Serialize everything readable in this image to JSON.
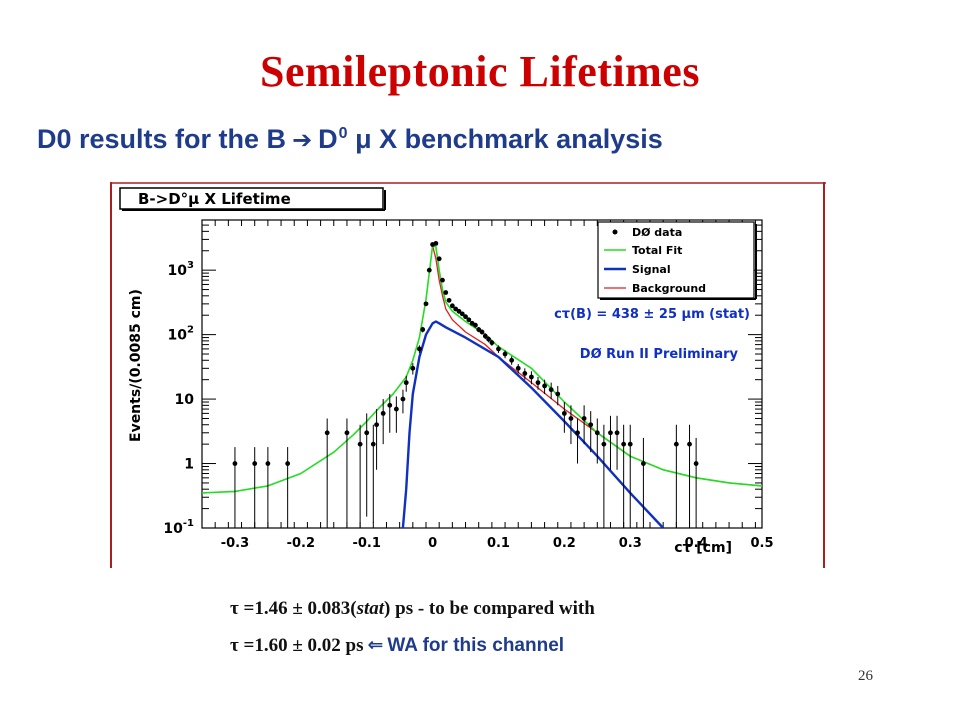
{
  "slide": {
    "title": "Semileptonic Lifetimes",
    "subtitle_pre": "D0 results for the B",
    "subtitle_d": "D",
    "subtitle_d_sup": "0",
    "subtitle_post": "μ X benchmark analysis",
    "result_line1_pre": "τ =1.46 ± 0.083(",
    "result_line1_italic": "stat",
    "result_line1_post": ") ps  - to be compared with",
    "result_line2_pre": "τ =1.60 ± 0.02 ps",
    "result_line2_note": "WA for this channel",
    "page_number": "26"
  },
  "chart_data": {
    "type": "scatter",
    "title": "B->D°μ X Lifetime",
    "xlabel": "cτ [cm]",
    "ylabel": "Events/(0.0085 cm)",
    "xlim": [
      -0.35,
      0.5
    ],
    "ylim": [
      0.1,
      6000
    ],
    "log_y": true,
    "grid": false,
    "legend_position": "top-right",
    "x_ticks": [
      -0.3,
      -0.2,
      -0.1,
      0,
      0.1,
      0.2,
      0.3,
      0.4,
      0.5
    ],
    "x_tick_labels": [
      "-0.3",
      "-0.2",
      "-0.1",
      "0",
      "0.1",
      "0.2",
      "0.3",
      "0.4",
      "0.5"
    ],
    "y_ticks": [
      0.1,
      1,
      10,
      100,
      1000
    ],
    "y_tick_labels": [
      {
        "base": "10",
        "exp": "-1"
      },
      {
        "base": "1",
        "exp": ""
      },
      {
        "base": "10",
        "exp": ""
      },
      {
        "base": "10",
        "exp": "2"
      },
      {
        "base": "10",
        "exp": "3"
      }
    ],
    "annotations": [
      "cτ(B) = 438 ± 25 μm (stat)",
      "DØ Run II Preliminary"
    ],
    "colors": {
      "data": "#000000",
      "total_fit": "#22dd22",
      "signal": "#1030c0",
      "background": "#dd2020",
      "frame": "#aa2020"
    },
    "series": [
      {
        "name": "DØ data",
        "kind": "points",
        "points": [
          {
            "x": -0.3,
            "y": 1,
            "lo": 0.1,
            "hi": 1.8
          },
          {
            "x": -0.27,
            "y": 1,
            "lo": 0.1,
            "hi": 1.8
          },
          {
            "x": -0.25,
            "y": 1,
            "lo": 0.1,
            "hi": 1.8
          },
          {
            "x": -0.22,
            "y": 1,
            "lo": 0.1,
            "hi": 1.8
          },
          {
            "x": -0.16,
            "y": 3,
            "lo": 0.1,
            "hi": 5
          },
          {
            "x": -0.13,
            "y": 3,
            "lo": 0.1,
            "hi": 5
          },
          {
            "x": -0.11,
            "y": 2,
            "lo": 0.1,
            "hi": 4
          },
          {
            "x": -0.1,
            "y": 3,
            "lo": 0.15,
            "hi": 6
          },
          {
            "x": -0.09,
            "y": 2,
            "lo": 0.12,
            "hi": 4
          },
          {
            "x": -0.085,
            "y": 4,
            "lo": 0.8,
            "hi": 7
          },
          {
            "x": -0.075,
            "y": 6,
            "lo": 2,
            "hi": 10
          },
          {
            "x": -0.065,
            "y": 8,
            "lo": 3,
            "hi": 12
          },
          {
            "x": -0.055,
            "y": 7,
            "lo": 3,
            "hi": 11
          },
          {
            "x": -0.045,
            "y": 10,
            "lo": 6,
            "hi": 14
          },
          {
            "x": -0.04,
            "y": 18,
            "lo": 13,
            "hi": 23
          },
          {
            "x": -0.03,
            "y": 30,
            "lo": 24,
            "hi": 36
          },
          {
            "x": -0.02,
            "y": 60,
            "lo": 52,
            "hi": 68
          },
          {
            "x": -0.015,
            "y": 120,
            "lo": 108,
            "hi": 132
          },
          {
            "x": -0.01,
            "y": 300,
            "lo": 283,
            "hi": 317
          },
          {
            "x": -0.005,
            "y": 1000,
            "lo": 970,
            "hi": 1030
          },
          {
            "x": 0,
            "y": 2500,
            "lo": 2450,
            "hi": 2550
          },
          {
            "x": 0.005,
            "y": 2600,
            "lo": 2550,
            "hi": 2650
          },
          {
            "x": 0.01,
            "y": 1500,
            "lo": 1460,
            "hi": 1540
          },
          {
            "x": 0.015,
            "y": 700,
            "lo": 674,
            "hi": 726
          },
          {
            "x": 0.02,
            "y": 450,
            "lo": 430,
            "hi": 470
          },
          {
            "x": 0.025,
            "y": 340,
            "lo": 322,
            "hi": 358
          },
          {
            "x": 0.03,
            "y": 280,
            "lo": 264,
            "hi": 296
          },
          {
            "x": 0.035,
            "y": 250,
            "lo": 235,
            "hi": 265
          },
          {
            "x": 0.04,
            "y": 230,
            "lo": 215,
            "hi": 245
          },
          {
            "x": 0.045,
            "y": 210,
            "lo": 196,
            "hi": 224
          },
          {
            "x": 0.05,
            "y": 190,
            "lo": 176,
            "hi": 204
          },
          {
            "x": 0.055,
            "y": 170,
            "lo": 157,
            "hi": 183
          },
          {
            "x": 0.06,
            "y": 150,
            "lo": 138,
            "hi": 162
          },
          {
            "x": 0.065,
            "y": 140,
            "lo": 128,
            "hi": 152
          },
          {
            "x": 0.07,
            "y": 120,
            "lo": 109,
            "hi": 131
          },
          {
            "x": 0.075,
            "y": 110,
            "lo": 100,
            "hi": 120
          },
          {
            "x": 0.08,
            "y": 95,
            "lo": 85,
            "hi": 105
          },
          {
            "x": 0.085,
            "y": 85,
            "lo": 76,
            "hi": 94
          },
          {
            "x": 0.09,
            "y": 75,
            "lo": 67,
            "hi": 83
          },
          {
            "x": 0.1,
            "y": 60,
            "lo": 52,
            "hi": 68
          },
          {
            "x": 0.11,
            "y": 50,
            "lo": 43,
            "hi": 57
          },
          {
            "x": 0.12,
            "y": 40,
            "lo": 34,
            "hi": 46
          },
          {
            "x": 0.13,
            "y": 30,
            "lo": 25,
            "hi": 35
          },
          {
            "x": 0.14,
            "y": 25,
            "lo": 20,
            "hi": 30
          },
          {
            "x": 0.15,
            "y": 22,
            "lo": 17,
            "hi": 27
          },
          {
            "x": 0.16,
            "y": 18,
            "lo": 14,
            "hi": 22
          },
          {
            "x": 0.17,
            "y": 16,
            "lo": 12,
            "hi": 20
          },
          {
            "x": 0.18,
            "y": 14,
            "lo": 10,
            "hi": 18
          },
          {
            "x": 0.19,
            "y": 12,
            "lo": 8,
            "hi": 16
          },
          {
            "x": 0.2,
            "y": 6,
            "lo": 3,
            "hi": 9
          },
          {
            "x": 0.21,
            "y": 5,
            "lo": 2,
            "hi": 8
          },
          {
            "x": 0.22,
            "y": 3,
            "lo": 1,
            "hi": 5
          },
          {
            "x": 0.23,
            "y": 5,
            "lo": 2,
            "hi": 8
          },
          {
            "x": 0.24,
            "y": 4,
            "lo": 1.5,
            "hi": 6.5
          },
          {
            "x": 0.25,
            "y": 3,
            "lo": 1,
            "hi": 5
          },
          {
            "x": 0.26,
            "y": 2,
            "lo": 0.1,
            "hi": 4
          },
          {
            "x": 0.27,
            "y": 3,
            "lo": 0.8,
            "hi": 5.5
          },
          {
            "x": 0.28,
            "y": 3,
            "lo": 0.8,
            "hi": 5.5
          },
          {
            "x": 0.29,
            "y": 2,
            "lo": 0.1,
            "hi": 4
          },
          {
            "x": 0.3,
            "y": 2,
            "lo": 0.1,
            "hi": 4
          },
          {
            "x": 0.32,
            "y": 1,
            "lo": 0.1,
            "hi": 2.5
          },
          {
            "x": 0.37,
            "y": 2,
            "lo": 0.1,
            "hi": 4
          },
          {
            "x": 0.39,
            "y": 2,
            "lo": 0.1,
            "hi": 4
          },
          {
            "x": 0.4,
            "y": 1,
            "lo": 0.1,
            "hi": 2.5
          }
        ]
      },
      {
        "name": "Total Fit",
        "kind": "line",
        "x": [
          -0.35,
          -0.3,
          -0.25,
          -0.2,
          -0.15,
          -0.12,
          -0.1,
          -0.08,
          -0.06,
          -0.04,
          -0.03,
          -0.02,
          -0.01,
          0,
          0.005,
          0.01,
          0.015,
          0.02,
          0.03,
          0.05,
          0.08,
          0.1,
          0.15,
          0.2,
          0.25,
          0.3,
          0.35,
          0.4,
          0.45,
          0.5
        ],
        "y": [
          0.35,
          0.37,
          0.45,
          0.7,
          1.5,
          2.8,
          4.5,
          7.5,
          12,
          22,
          40,
          90,
          350,
          2400,
          2300,
          1000,
          500,
          320,
          230,
          160,
          100,
          65,
          30,
          9,
          3,
          1.3,
          0.8,
          0.6,
          0.5,
          0.45
        ]
      },
      {
        "name": "Signal",
        "kind": "line",
        "x": [
          -0.045,
          -0.04,
          -0.035,
          -0.03,
          -0.02,
          -0.01,
          0,
          0.005,
          0.01,
          0.02,
          0.05,
          0.1,
          0.15,
          0.2,
          0.25,
          0.3,
          0.35
        ],
        "y": [
          0.1,
          0.4,
          3,
          12,
          45,
          100,
          150,
          160,
          150,
          130,
          90,
          45,
          15,
          4.5,
          1.3,
          0.35,
          0.1
        ]
      },
      {
        "name": "Background",
        "kind": "line",
        "x": [
          0,
          0.005,
          0.01,
          0.015,
          0.02,
          0.03,
          0.05,
          0.08,
          0.1,
          0.15,
          0.2,
          0.25,
          0.3,
          0.35,
          0.4,
          0.45,
          0.5
        ],
        "y": [
          2400,
          1500,
          700,
          400,
          250,
          170,
          110,
          70,
          45,
          18,
          7,
          3,
          1.3,
          0.8,
          0.6,
          0.5,
          0.45
        ]
      }
    ]
  }
}
